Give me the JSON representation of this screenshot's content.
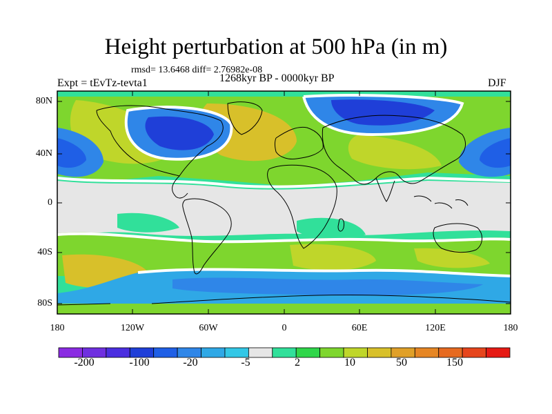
{
  "title": "Height perturbation at 500 hPa (in m)",
  "stats": "rmsd= 13.6468 diff= 2.76982e-08",
  "left_label": "Expt = tEvTz-tevta1",
  "center_label": "1268kyr BP - 0000kyr BP",
  "season": "DJF",
  "lat_ticks": [
    "80N",
    "40N",
    "0",
    "40S",
    "80S"
  ],
  "lon_ticks": [
    "180",
    "120W",
    "60W",
    "0",
    "60E",
    "120E",
    "180"
  ],
  "colorbar": {
    "colors": [
      "#8a2be2",
      "#6f2fe0",
      "#4b2ee0",
      "#1f3fd8",
      "#1f5fe6",
      "#2f86e8",
      "#2fa8e6",
      "#33c7e6",
      "#e6e6e6",
      "#31e09a",
      "#2fd64a",
      "#7ed62e",
      "#bfd62a",
      "#d8c02a",
      "#e0a028",
      "#e68624",
      "#e66a20",
      "#e6451c",
      "#e61a14"
    ],
    "labels": [
      "-200",
      "-100",
      "-20",
      "-5",
      "2",
      "10",
      "50",
      "150"
    ]
  },
  "field_legend": {
    "strong-negative": "#1f3fd8",
    "negative": "#2f86e8",
    "weak-negative": "#33c7e6",
    "neutral": "#e6e6e6",
    "weak-positive": "#31e09a",
    "positive": "#7ed62e",
    "strong-positive": "#d8c02a"
  }
}
